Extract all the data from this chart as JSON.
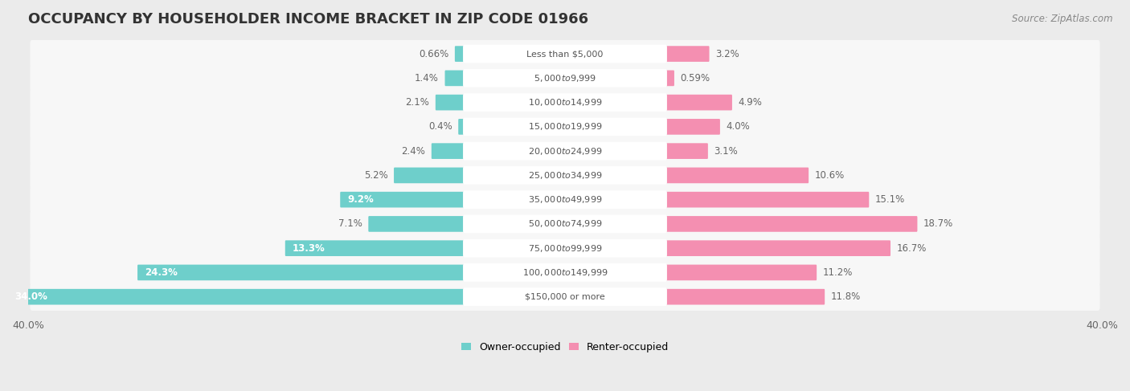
{
  "title": "OCCUPANCY BY HOUSEHOLDER INCOME BRACKET IN ZIP CODE 01966",
  "source": "Source: ZipAtlas.com",
  "categories": [
    "Less than $5,000",
    "$5,000 to $9,999",
    "$10,000 to $14,999",
    "$15,000 to $19,999",
    "$20,000 to $24,999",
    "$25,000 to $34,999",
    "$35,000 to $49,999",
    "$50,000 to $74,999",
    "$75,000 to $99,999",
    "$100,000 to $149,999",
    "$150,000 or more"
  ],
  "owner_values": [
    0.66,
    1.4,
    2.1,
    0.4,
    2.4,
    5.2,
    9.2,
    7.1,
    13.3,
    24.3,
    34.0
  ],
  "renter_values": [
    3.2,
    0.59,
    4.9,
    4.0,
    3.1,
    10.6,
    15.1,
    18.7,
    16.7,
    11.2,
    11.8
  ],
  "owner_color": "#6ECFCB",
  "renter_color": "#F48FB1",
  "owner_label": "Owner-occupied",
  "renter_label": "Renter-occupied",
  "axis_max": 40.0,
  "background_color": "#ebebeb",
  "row_bg_color": "#f7f7f7",
  "label_bg_color": "#ffffff",
  "title_fontsize": 13,
  "label_fontsize": 8.5,
  "source_fontsize": 8.5,
  "pct_fontsize": 8.5,
  "cat_fontsize": 8
}
